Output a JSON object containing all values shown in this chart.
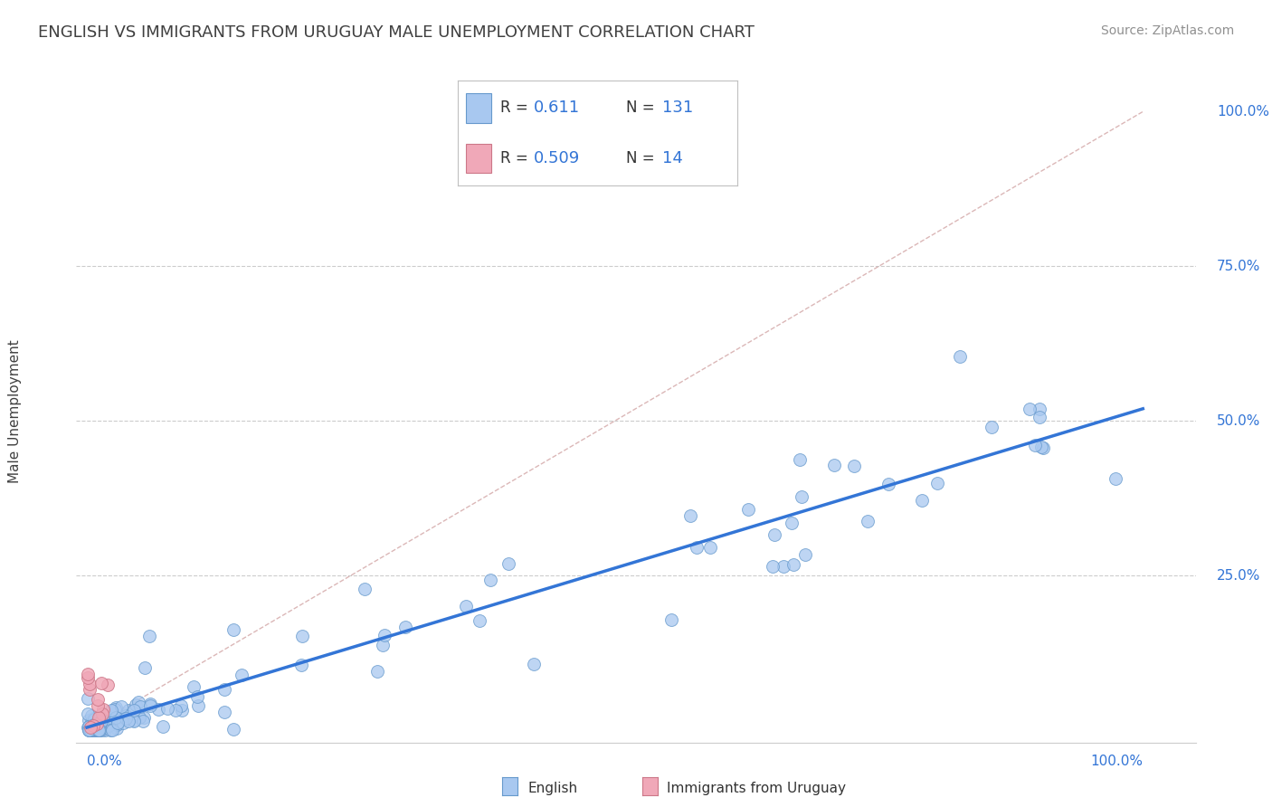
{
  "title": "ENGLISH VS IMMIGRANTS FROM URUGUAY MALE UNEMPLOYMENT CORRELATION CHART",
  "source": "Source: ZipAtlas.com",
  "ylabel": "Male Unemployment",
  "english_color": "#a8c8f0",
  "english_edge_color": "#6699cc",
  "uruguay_color": "#f0a8b8",
  "uruguay_edge_color": "#cc7788",
  "regression_line_color": "#3375d6",
  "diagonal_line_color": "#cc9999",
  "background_color": "#ffffff",
  "title_color": "#404040",
  "source_color": "#909090",
  "axis_label_color": "#3375d6",
  "grid_color": "#cccccc",
  "legend_r_color": "#3375d6",
  "english_r": "0.611",
  "english_n": "131",
  "uruguay_r": "0.509",
  "uruguay_n": "14",
  "marker_size": 100,
  "title_fontsize": 13,
  "source_fontsize": 10,
  "axis_tick_fontsize": 11,
  "legend_fontsize": 12
}
